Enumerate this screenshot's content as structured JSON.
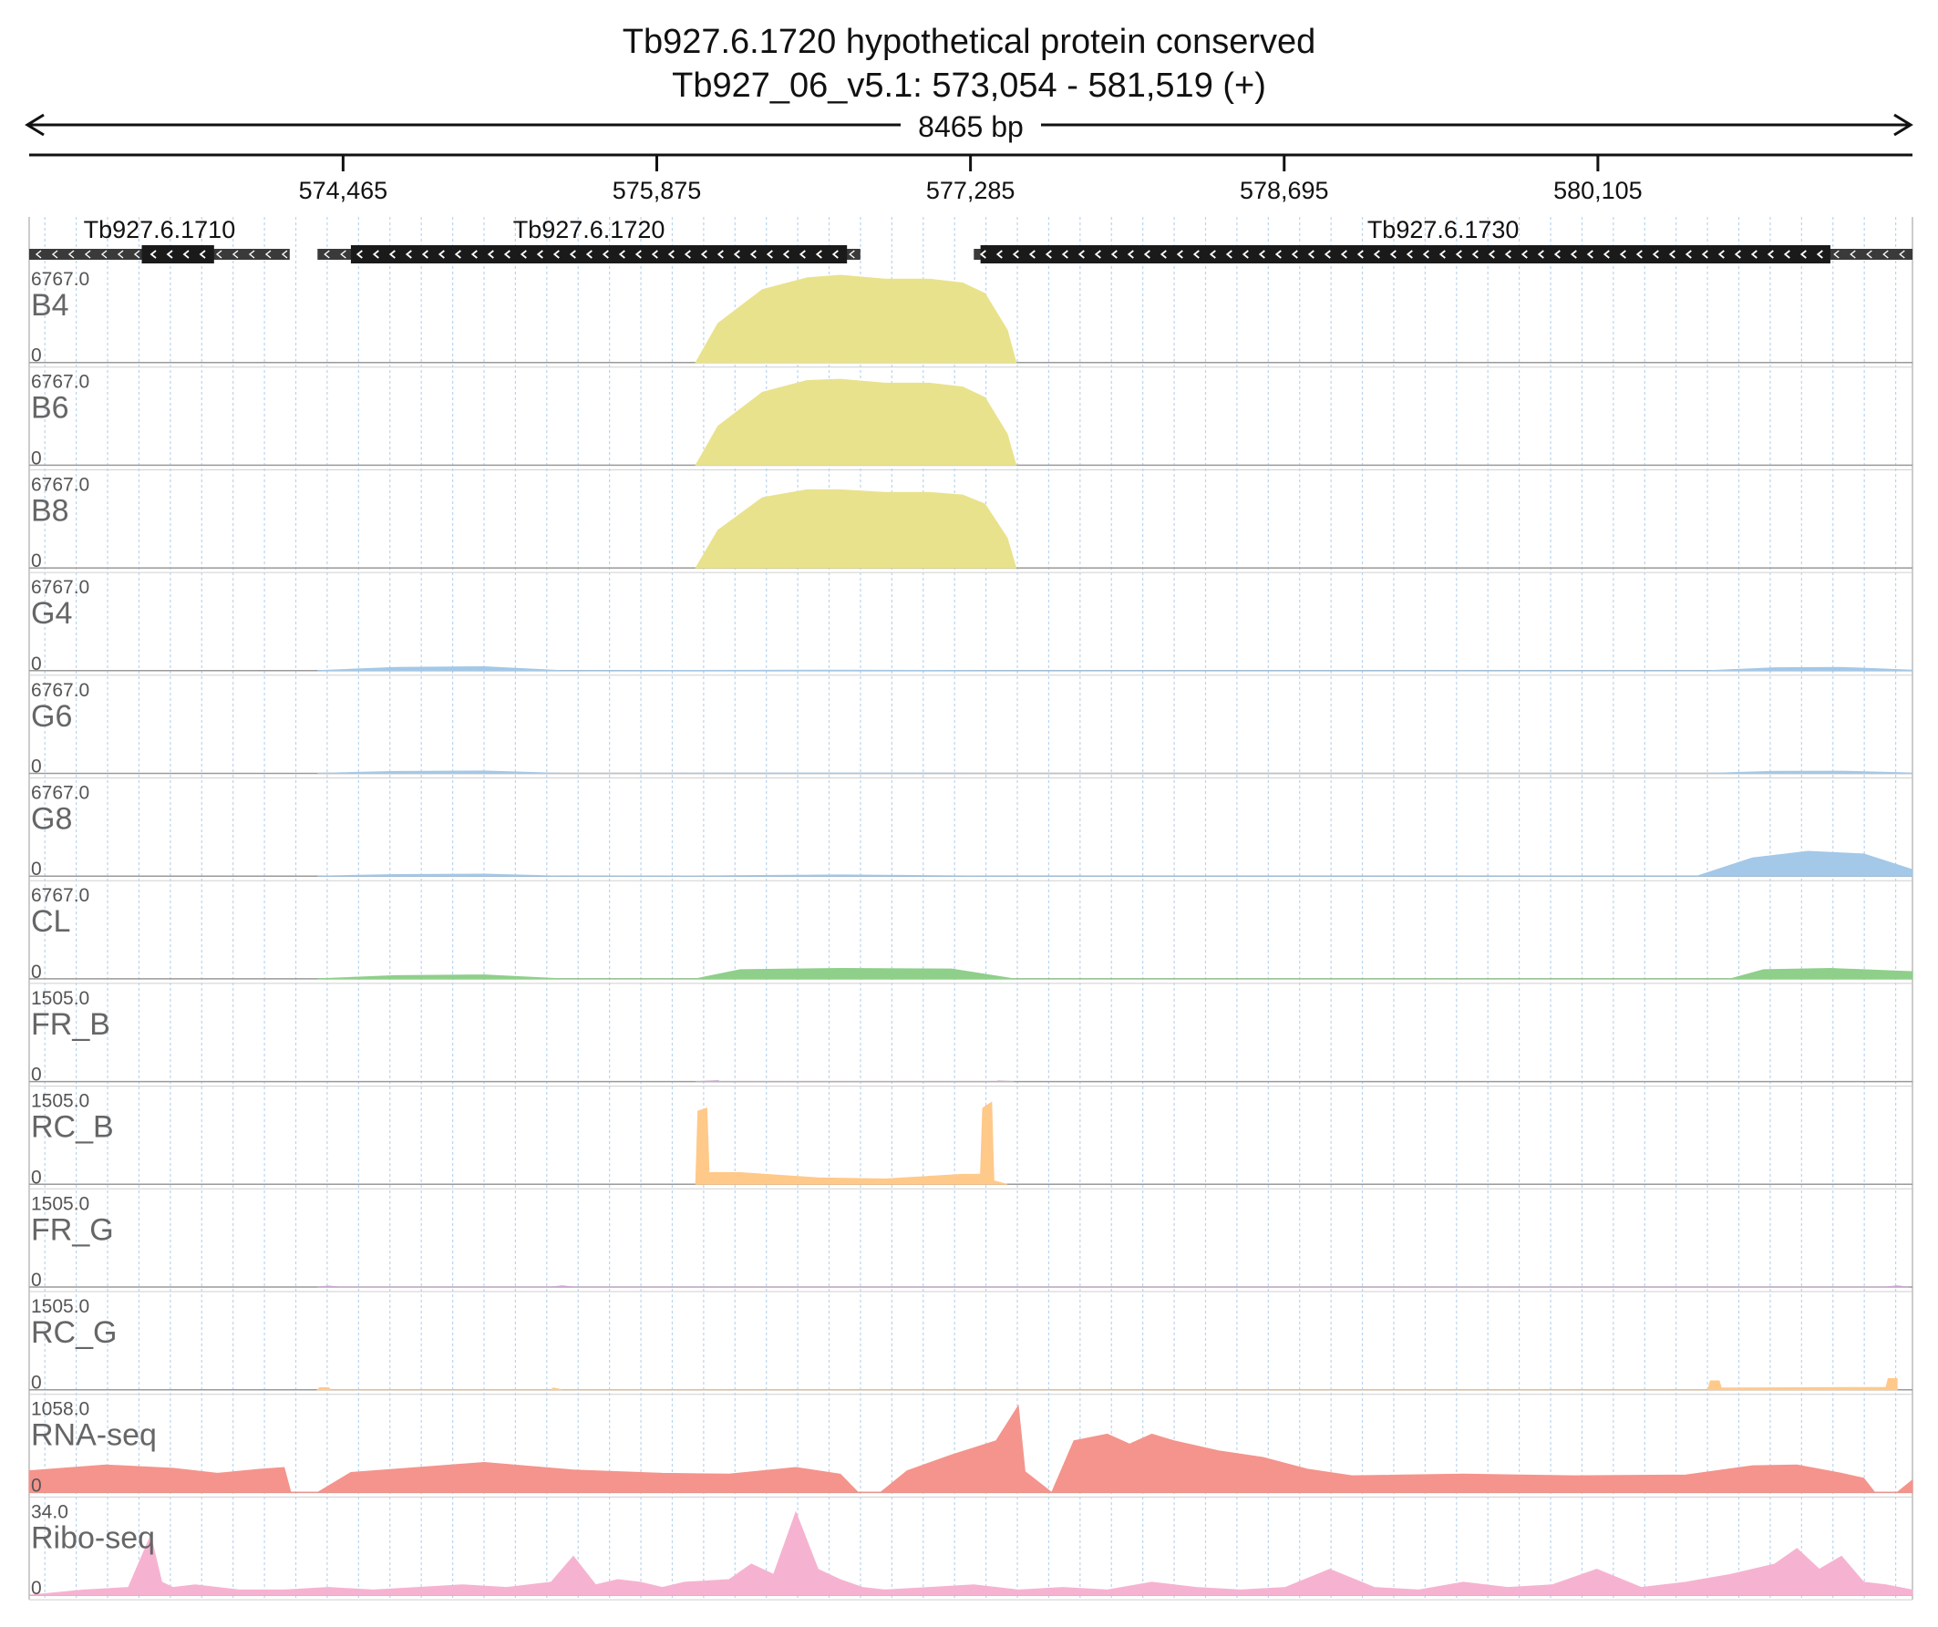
{
  "chart_data": {
    "type": "area",
    "title": "Tb927.6.1720  hypothetical protein  conserved",
    "subtitle": "Tb927_06_v5.1: 573,054 - 581,519 (+)",
    "span_label": "8465 bp",
    "x_range": [
      573054,
      581519
    ],
    "x_ticks": [
      574465,
      575875,
      577285,
      578695,
      580105
    ],
    "x_tick_labels": [
      "574,465",
      "575,875",
      "577,285",
      "578,695",
      "580,105"
    ],
    "genes": [
      {
        "name": "Tb927.6.1710",
        "strand": "-",
        "span": [
          573054,
          574225
        ],
        "cds": [
          573560,
          573885
        ]
      },
      {
        "name": "Tb927.6.1720",
        "strand": "-",
        "span": [
          574350,
          576790
        ],
        "cds": [
          574500,
          576730
        ]
      },
      {
        "name": "Tb927.6.1730",
        "strand": "-",
        "span": [
          577300,
          581519
        ],
        "cds": [
          577330,
          581150
        ]
      }
    ],
    "tracks": [
      {
        "name": "B4",
        "max_label": "6767.0",
        "min_label": "0",
        "max": 6767,
        "color": "#e9e28c",
        "x": [
          576050,
          576150,
          576350,
          576550,
          576700,
          576900,
          577100,
          577250,
          577350,
          577450,
          577490
        ],
        "y": [
          0,
          3000,
          5600,
          6500,
          6700,
          6400,
          6400,
          6100,
          5300,
          2500,
          0
        ]
      },
      {
        "name": "B6",
        "max_label": "6767.0",
        "min_label": "0",
        "max": 6767,
        "color": "#e9e28c",
        "x": [
          576050,
          576150,
          576350,
          576550,
          576700,
          576900,
          577100,
          577250,
          577350,
          577450,
          577490
        ],
        "y": [
          0,
          3000,
          5600,
          6500,
          6600,
          6300,
          6300,
          6000,
          5200,
          2400,
          0
        ]
      },
      {
        "name": "B8",
        "max_label": "6767.0",
        "min_label": "0",
        "max": 6767,
        "color": "#e9e28c",
        "x": [
          576050,
          576150,
          576350,
          576550,
          576700,
          576900,
          577100,
          577250,
          577350,
          577450,
          577490
        ],
        "y": [
          0,
          2900,
          5400,
          6000,
          6000,
          5800,
          5800,
          5600,
          4900,
          2300,
          0
        ]
      },
      {
        "name": "G4",
        "max_label": "6767.0",
        "min_label": "0",
        "max": 6767,
        "color": "#a3c8e8",
        "x": [
          574350,
          574700,
          575100,
          575450,
          576050,
          576700,
          577400,
          580600,
          580900,
          581200,
          581519
        ],
        "y": [
          0,
          250,
          300,
          0,
          20,
          40,
          0,
          0,
          220,
          250,
          40
        ]
      },
      {
        "name": "G6",
        "max_label": "6767.0",
        "min_label": "0",
        "max": 6767,
        "color": "#a3c8e8",
        "x": [
          574350,
          574700,
          575100,
          575450,
          576050,
          576700,
          577400,
          580600,
          580900,
          581200,
          581519
        ],
        "y": [
          0,
          150,
          180,
          0,
          10,
          30,
          0,
          0,
          160,
          170,
          30
        ]
      },
      {
        "name": "G8",
        "max_label": "6767.0",
        "min_label": "0",
        "max": 6767,
        "color": "#a3c8e8",
        "x": [
          574350,
          574700,
          575100,
          575450,
          576050,
          576700,
          577400,
          580550,
          580800,
          581050,
          581300,
          581519
        ],
        "y": [
          0,
          120,
          150,
          0,
          10,
          90,
          0,
          0,
          1400,
          1900,
          1700,
          500
        ]
      },
      {
        "name": "CL",
        "max_label": "6767.0",
        "min_label": "0",
        "max": 6767,
        "color": "#8ecf8a",
        "x": [
          574350,
          574700,
          575100,
          575450,
          576050,
          576250,
          576700,
          577200,
          577480,
          580700,
          580850,
          581150,
          581450,
          581519
        ],
        "y": [
          0,
          250,
          300,
          0,
          0,
          700,
          800,
          750,
          0,
          0,
          700,
          800,
          600,
          550
        ]
      },
      {
        "name": "FR_B",
        "max_label": "1505.0",
        "min_label": "0",
        "max": 1505,
        "color": "#c8a6ce",
        "x": [
          576050,
          576150,
          576160,
          577400,
          577410,
          577480
        ],
        "y": [
          0,
          15,
          0,
          0,
          12,
          0
        ]
      },
      {
        "name": "RC_B",
        "max_label": "1505.0",
        "min_label": "0",
        "max": 1505,
        "color": "#ffc98a",
        "x": [
          576050,
          576060,
          576100,
          576110,
          576250,
          576600,
          576900,
          577250,
          577330,
          577340,
          577380,
          577390,
          577450
        ],
        "y": [
          0,
          1250,
          1300,
          200,
          200,
          110,
          90,
          170,
          170,
          1300,
          1400,
          60,
          0
        ]
      },
      {
        "name": "FR_G",
        "max_label": "1505.0",
        "min_label": "0",
        "max": 1505,
        "color": "#c8a6ce",
        "x": [
          574350,
          574400,
          574450,
          575400,
          575450,
          575500,
          581400,
          581450,
          581500
        ],
        "y": [
          0,
          15,
          0,
          0,
          20,
          0,
          0,
          20,
          0
        ]
      },
      {
        "name": "RC_G",
        "max_label": "1505.0",
        "min_label": "0",
        "max": 1505,
        "color": "#ffc98a",
        "x": [
          574350,
          574360,
          574400,
          574410,
          575400,
          575410,
          575450,
          580600,
          580610,
          580650,
          580660,
          581400,
          581410,
          581450
        ],
        "y": [
          0,
          35,
          35,
          0,
          0,
          30,
          0,
          0,
          150,
          150,
          30,
          40,
          190,
          190
        ]
      },
      {
        "name": "RNA-seq",
        "max_label": "1058.0",
        "min_label": "0",
        "max": 1058,
        "color": "#f4948c",
        "x": [
          573054,
          573400,
          573700,
          573900,
          574100,
          574200,
          574230,
          574350,
          574500,
          574800,
          575100,
          575500,
          575900,
          576200,
          576500,
          576700,
          576780,
          576880,
          577000,
          577200,
          577400,
          577500,
          577530,
          577650,
          577750,
          577900,
          578000,
          578100,
          578200,
          578400,
          578600,
          578800,
          579000,
          579500,
          580000,
          580500,
          580800,
          581000,
          581200,
          581300,
          581350,
          581450,
          581519
        ],
        "y": [
          260,
          330,
          290,
          230,
          280,
          300,
          0,
          0,
          240,
          300,
          360,
          270,
          230,
          220,
          300,
          220,
          0,
          0,
          260,
          450,
          620,
          1040,
          250,
          0,
          620,
          700,
          580,
          700,
          620,
          500,
          420,
          280,
          200,
          220,
          200,
          210,
          320,
          330,
          230,
          170,
          0,
          0,
          150
        ]
      },
      {
        "name": "Ribo-seq",
        "max_label": "34.0",
        "min_label": "0",
        "max": 34,
        "color": "#f6b3d1",
        "x": [
          573054,
          573300,
          573500,
          573600,
          573650,
          573700,
          573800,
          574000,
          574200,
          574400,
          574600,
          574800,
          575000,
          575200,
          575400,
          575500,
          575600,
          575700,
          575800,
          575900,
          576000,
          576200,
          576300,
          576400,
          576500,
          576600,
          576700,
          576800,
          576900,
          577100,
          577300,
          577500,
          577700,
          577900,
          578100,
          578300,
          578500,
          578700,
          578900,
          579100,
          579300,
          579500,
          579700,
          579900,
          580100,
          580300,
          580500,
          580700,
          580900,
          581000,
          581100,
          581200,
          581300,
          581400,
          581519
        ],
        "y": [
          0,
          2,
          3,
          23,
          5,
          3,
          4,
          2,
          2,
          3,
          2,
          3,
          4,
          3,
          5,
          15,
          4,
          6,
          5,
          3,
          5,
          6,
          12,
          8,
          32,
          10,
          6,
          3,
          2,
          3,
          4,
          2,
          3,
          2,
          5,
          3,
          2,
          3,
          10,
          3,
          2,
          5,
          3,
          4,
          10,
          3,
          5,
          8,
          12,
          18,
          10,
          15,
          5,
          4,
          2
        ]
      }
    ]
  }
}
